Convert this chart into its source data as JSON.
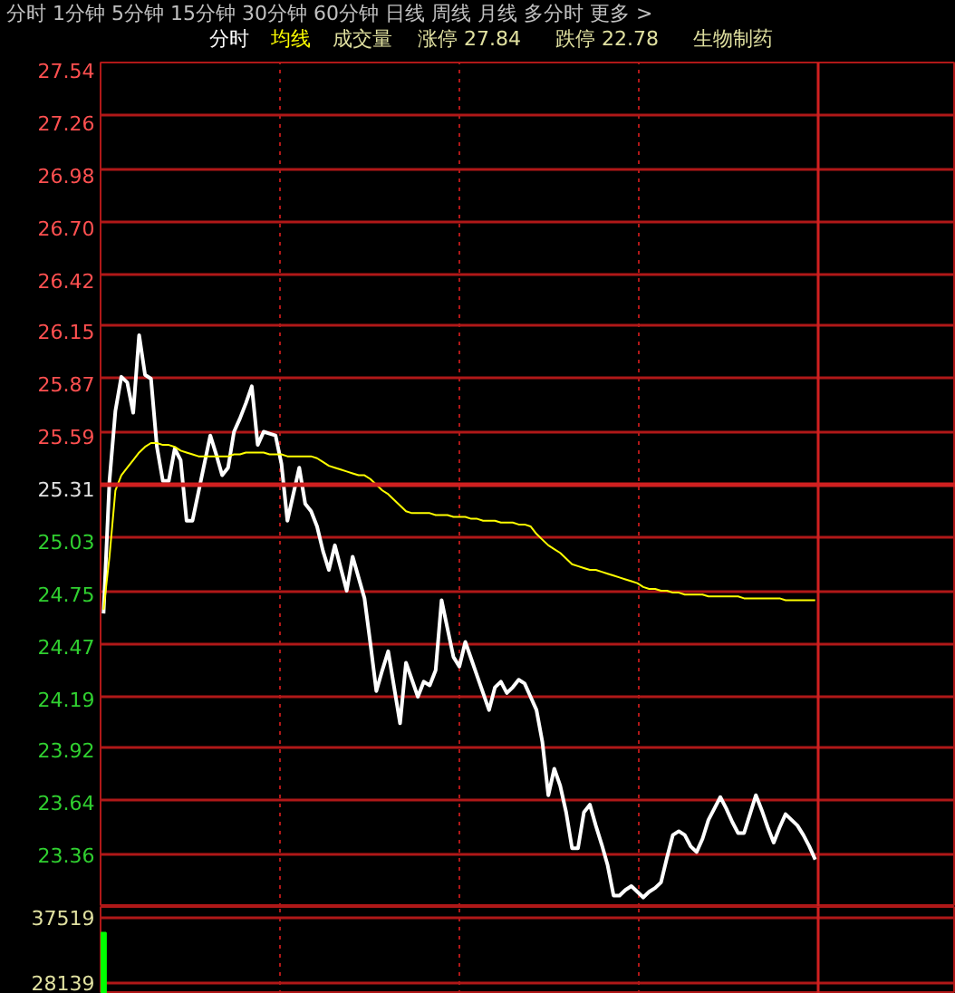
{
  "chart_data": [
    {
      "type": "line",
      "annotations": [
        "分时  1分钟  5分钟  15分钟  30分钟  60分钟  日线  周线  月线  多分时  更多 >",
        "成交量",
        "涨停 27.84",
        "跌停 22.78",
        "生物制药"
      ],
      "categories": [
        null,
        null,
        null,
        null,
        null,
        null,
        null,
        null,
        null,
        null,
        null,
        null,
        null,
        null,
        null,
        null,
        null,
        null,
        null,
        null,
        null,
        null,
        null,
        null,
        null,
        null,
        null,
        null,
        null,
        null,
        null,
        null,
        null,
        null,
        null,
        null,
        null,
        null,
        null,
        null,
        null,
        null,
        null,
        null,
        null,
        null,
        null,
        null,
        null,
        null,
        null,
        null,
        null,
        null,
        null,
        null,
        null,
        null,
        null,
        null,
        null,
        null,
        null,
        null,
        null,
        null,
        null,
        null,
        null,
        null,
        null,
        null,
        null,
        null,
        null,
        null,
        null,
        null,
        null,
        null,
        null,
        null,
        null,
        null,
        null,
        null,
        null,
        null,
        null,
        null,
        null,
        null,
        null,
        null,
        null,
        null,
        null,
        null,
        null,
        null,
        null,
        null,
        null,
        null,
        null,
        null,
        null,
        null,
        null,
        null,
        null,
        null,
        null,
        null,
        null,
        null,
        null,
        null,
        null,
        null,
        null
      ],
      "series": [
        {
          "name": "分时",
          "color": "#ffffff",
          "values": [
            24.63,
            25.33,
            25.7,
            25.88,
            25.85,
            25.69,
            26.1,
            25.89,
            25.87,
            25.51,
            25.33,
            25.33,
            25.5,
            25.44,
            25.12,
            25.12,
            25.27,
            25.42,
            25.57,
            25.47,
            25.36,
            25.4,
            25.59,
            25.66,
            25.74,
            25.83,
            25.52,
            25.59,
            25.58,
            25.57,
            25.42,
            25.12,
            25.26,
            25.4,
            25.21,
            25.17,
            25.09,
            24.96,
            24.86,
            24.99,
            24.87,
            24.75,
            24.93,
            24.82,
            24.71,
            24.47,
            24.22,
            24.33,
            24.43,
            24.24,
            24.05,
            24.37,
            24.28,
            24.19,
            24.27,
            24.25,
            24.33,
            24.7,
            24.55,
            24.4,
            24.35,
            24.48,
            24.39,
            24.3,
            24.21,
            24.12,
            24.24,
            24.27,
            24.21,
            24.24,
            24.28,
            24.26,
            24.19,
            24.12,
            23.95,
            23.67,
            23.81,
            23.72,
            23.58,
            23.39,
            23.39,
            23.58,
            23.62,
            23.51,
            23.41,
            23.3,
            23.14,
            23.14,
            23.17,
            23.19,
            23.16,
            23.13,
            23.16,
            23.18,
            23.21,
            23.34,
            23.46,
            23.48,
            23.46,
            23.4,
            23.37,
            23.44,
            23.54,
            23.6,
            23.66,
            23.6,
            23.53,
            23.47,
            23.47,
            23.57,
            23.67,
            23.59,
            23.5,
            23.42,
            23.5,
            23.57,
            23.54,
            23.51,
            23.46,
            23.4,
            23.33
          ]
        },
        {
          "name": "均线",
          "color": "#ffff00",
          "values": [
            24.65,
            24.93,
            25.28,
            25.36,
            25.4,
            25.44,
            25.48,
            25.51,
            25.53,
            25.53,
            25.52,
            25.52,
            25.51,
            25.49,
            25.48,
            25.47,
            25.46,
            25.46,
            25.46,
            25.46,
            25.46,
            25.46,
            25.47,
            25.47,
            25.48,
            25.48,
            25.48,
            25.48,
            25.47,
            25.47,
            25.47,
            25.46,
            25.46,
            25.46,
            25.46,
            25.46,
            25.45,
            25.43,
            25.41,
            25.4,
            25.39,
            25.38,
            25.37,
            25.36,
            25.36,
            25.34,
            25.31,
            25.28,
            25.26,
            25.23,
            25.2,
            25.17,
            25.16,
            25.16,
            25.16,
            25.16,
            25.15,
            25.15,
            25.15,
            25.14,
            25.14,
            25.14,
            25.13,
            25.13,
            25.12,
            25.12,
            25.12,
            25.11,
            25.11,
            25.11,
            25.1,
            25.1,
            25.09,
            25.05,
            25.02,
            24.99,
            24.97,
            24.95,
            24.92,
            24.89,
            24.88,
            24.87,
            24.86,
            24.86,
            24.85,
            24.84,
            24.83,
            24.82,
            24.81,
            24.8,
            24.79,
            24.77,
            24.76,
            24.76,
            24.75,
            24.75,
            24.74,
            24.74,
            24.73,
            24.73,
            24.73,
            24.73,
            24.72,
            24.72,
            24.72,
            24.72,
            24.72,
            24.72,
            24.71,
            24.71,
            24.71,
            24.71,
            24.71,
            24.71,
            24.71,
            24.7,
            24.7,
            24.7,
            24.7,
            24.7,
            24.7
          ]
        }
      ],
      "ylim": [
        23.08,
        27.54
      ],
      "yticks": [
        27.54,
        27.26,
        26.98,
        {
          "value": 26.7,
          "label": "26.70"
        },
        26.42,
        26.15,
        25.87,
        25.59,
        25.31,
        25.03,
        24.75,
        24.47,
        24.19,
        23.92,
        23.64,
        23.36
      ],
      "ref_lines": [
        {
          "axis": "y",
          "value": 25.31,
          "label": null
        }
      ],
      "grid": true,
      "tick_labels": "y"
    },
    {
      "type": "bar",
      "categories": [
        null,
        null,
        null,
        null,
        null,
        null,
        null,
        null,
        null,
        null,
        null,
        null,
        null,
        null,
        null,
        null,
        null,
        null,
        null,
        null,
        null,
        null,
        null,
        null,
        null,
        null,
        null,
        null,
        null,
        null,
        null,
        null,
        null,
        null,
        null,
        null,
        null,
        null,
        null,
        null,
        null,
        null,
        null,
        null,
        null,
        null,
        null,
        null,
        null,
        null,
        null,
        null,
        null,
        null,
        null,
        null,
        null,
        null,
        null,
        null,
        null,
        null,
        null,
        null,
        null,
        null,
        null,
        null,
        null,
        null,
        null,
        null,
        null,
        null,
        null,
        null,
        null,
        null,
        null,
        null,
        null,
        null,
        null,
        null,
        null,
        null,
        null,
        null,
        null,
        null,
        null,
        null,
        null,
        null,
        null,
        null,
        null,
        null,
        null,
        null,
        null,
        null,
        null,
        null,
        null,
        null,
        null,
        null,
        null,
        null,
        null,
        null,
        null,
        null,
        null,
        null,
        null,
        null,
        null,
        null,
        null
      ],
      "values": [
        35300,
        null,
        null,
        null,
        null,
        null,
        null,
        null,
        null,
        null,
        null,
        null,
        null,
        null,
        null,
        null,
        null,
        null,
        null,
        null,
        null,
        null,
        null,
        null,
        null,
        null,
        null,
        null,
        null,
        null,
        null,
        null,
        null,
        null,
        null,
        null,
        null,
        null,
        null,
        null,
        null,
        null,
        null,
        null,
        null,
        null,
        null,
        null,
        null,
        null,
        null,
        null,
        null,
        null,
        null,
        null,
        null,
        null,
        null,
        null,
        null,
        null,
        null,
        null,
        null,
        null,
        null,
        null,
        null,
        null,
        null,
        null,
        null,
        null,
        null,
        null,
        null,
        null,
        null,
        null,
        null,
        null,
        null,
        null,
        null,
        null,
        null,
        null,
        null,
        null,
        null,
        null,
        null,
        null,
        null,
        null,
        null,
        null,
        null,
        null,
        null,
        null,
        null,
        null,
        null,
        null,
        null,
        null,
        null,
        null,
        null,
        null,
        null,
        null,
        null,
        null,
        null,
        null,
        null,
        null,
        null
      ],
      "color": "#00ff00",
      "ylim": [
        26500,
        39000
      ],
      "yticks": [
        37519,
        28139
      ],
      "grid": true,
      "tick_labels": "y"
    }
  ]
}
